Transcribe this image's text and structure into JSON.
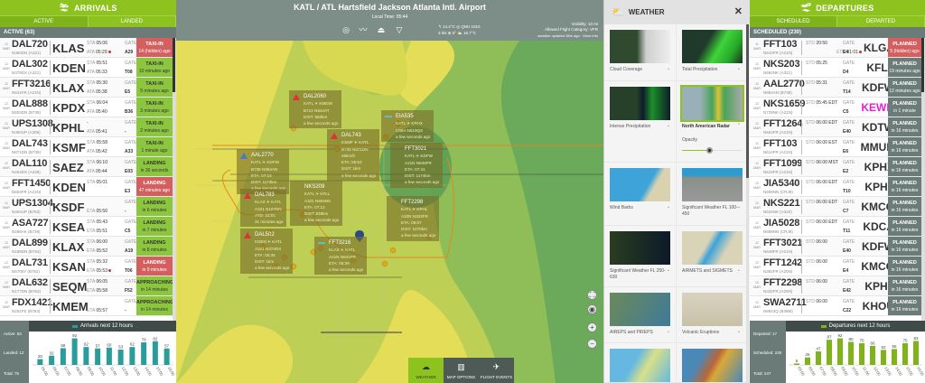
{
  "arrivals": {
    "title": "ARRIVALS",
    "tabs": [
      "ACTIVE",
      "LANDED"
    ],
    "section": "ACTIVE (63)",
    "rows": [
      {
        "date": "12 MAR",
        "callsign": "DAL720",
        "reg": "N360DN (A321)",
        "airport": "KLAS",
        "t1l": "STA",
        "t1": "05:06",
        "t2l": "ATA",
        "t2": "05:29",
        "late": true,
        "gate": "A29",
        "status": "TAXI-IN",
        "sub": "14 (hidden) ago",
        "color": "red"
      },
      {
        "date": "12 MAR",
        "callsign": "DAL302",
        "reg": "N379DX (A321)",
        "airport": "KDEN",
        "t1l": "STA",
        "t1": "05:51",
        "t2l": "ATA",
        "t2": "05:33",
        "gate": "T08",
        "status": "TAXI-IN",
        "sub": "10 minutes ago",
        "color": "green"
      },
      {
        "date": "12 MAR",
        "callsign": "FFT3216",
        "reg": "N641FR (A21N)",
        "airport": "KLAX",
        "t1l": "STA",
        "t1": "05:30",
        "t2l": "ATA",
        "t2": "05:38",
        "gate": "E5",
        "status": "TAXI-IN",
        "sub": "5 minutes ago",
        "color": "green"
      },
      {
        "date": "12 MAR",
        "callsign": "DAL888",
        "reg": "N803DN (B739)",
        "airport": "KPDX",
        "t1l": "STA",
        "t1": "06:04",
        "t2l": "ATA",
        "t2": "05:40",
        "gate": "B36",
        "status": "TAXI-IN",
        "sub": "3 minutes ago",
        "color": "green"
      },
      {
        "date": "12 MAR",
        "callsign": "UPS1308",
        "reg": "N350UP (A306)",
        "airport": "KPHL",
        "t1l": "",
        "t1": "-",
        "t2l": "ATA",
        "t2": "05:41",
        "gate": "-",
        "status": "TAXI-IN",
        "sub": "2 minutes ago",
        "color": "green"
      },
      {
        "date": "12 MAR",
        "callsign": "DAL743",
        "reg": "N871DN (B739)",
        "airport": "KSMF",
        "t1l": "STA",
        "t1": "05:58",
        "t2l": "ATA",
        "t2": "05:42",
        "gate": "A33",
        "status": "TAXI-IN",
        "sub": "1 minute ago",
        "color": "green"
      },
      {
        "date": "12 MAR",
        "callsign": "DAL110",
        "reg": "N404DX (A339)",
        "airport": "SAEZ",
        "t1l": "STA",
        "t1": "06:10",
        "t2l": "ATA",
        "t2": "05:44",
        "gate": "E03",
        "status": "LANDING",
        "sub": "in 36 seconds",
        "color": "green"
      },
      {
        "date": "12 MAR",
        "callsign": "FFT1450",
        "reg": "N663FR (A21N)",
        "airport": "KDEN",
        "t1l": "STA",
        "t1": "05:01",
        "t2l": "",
        "t2": "",
        "gate": "E3",
        "status": "LANDING",
        "sub": "47 minutes ago",
        "color": "red"
      },
      {
        "date": "12 MAR",
        "callsign": "UPS1304",
        "reg": "N304UP (B763)",
        "airport": "KSDF",
        "t1l": "",
        "t1": "",
        "t2l": "ETA",
        "t2": "05:50",
        "gate": "-",
        "status": "LANDING",
        "sub": "in 6 minutes",
        "color": "green"
      },
      {
        "date": "12 MAR",
        "callsign": "ASA727",
        "reg": "N298AK (B739)",
        "airport": "KSEA",
        "t1l": "STA",
        "t1": "05:43",
        "t2l": "ETA",
        "t2": "05:51",
        "gate": "C5",
        "status": "LANDING",
        "sub": "in 7 minutes",
        "color": "green"
      },
      {
        "date": "12 MAR",
        "callsign": "DAL899",
        "reg": "N185DN (B763)",
        "airport": "KLAX",
        "t1l": "STA",
        "t1": "06:00",
        "t2l": "ETA",
        "t2": "05:52",
        "gate": "A19",
        "status": "LANDING",
        "sub": "in 8 minutes",
        "color": "green"
      },
      {
        "date": "12 MAR",
        "callsign": "DAL731",
        "reg": "N6705Y (B752)",
        "airport": "KSAN",
        "t1l": "STA",
        "t1": "05:32",
        "t2l": "ETA",
        "t2": "05:53",
        "late": true,
        "gate": "T06",
        "status": "LANDING",
        "sub": "in 9 minutes",
        "color": "red"
      },
      {
        "date": "12 MAR",
        "callsign": "DAL632",
        "reg": "N177DN (B763)",
        "airport": "SEQM",
        "t1l": "STA",
        "t1": "06:05",
        "t2l": "ETA",
        "t2": "05:58",
        "gate": "F52",
        "status": "APPROACHING",
        "sub": "in 14 minutes",
        "color": "green"
      },
      {
        "date": "12 MAR",
        "callsign": "FDX1421",
        "reg": "N251FE (B763)",
        "airport": "KMEM",
        "t1l": "",
        "t1": "",
        "t2l": "ETA",
        "t2": "05:57",
        "gate": "-",
        "status": "APPROACHING",
        "sub": "in 14 minutes",
        "color": "green"
      }
    ],
    "chart": {
      "legend": "Arrivals next 12 hours",
      "stats": [
        "Active: 63",
        "Landed: 12",
        "Total: 75"
      ]
    }
  },
  "departures": {
    "title": "DEPARTURES",
    "tabs": [
      "SCHEDULED",
      "DEPARTED"
    ],
    "section": "SCHEDULED (230)",
    "rows": [
      {
        "date": "11 MAR",
        "callsign": "FFT103",
        "reg": "N610FR (A21N)",
        "airport": "KLGA",
        "t1l": "STD",
        "t1": "20:50",
        "t2l": "ETD",
        "t2": "01:01",
        "late": true,
        "gate": "E4",
        "status": "PLANNED",
        "sub": "5 (hidden) ago",
        "color": "red"
      },
      {
        "date": "12 MAR",
        "callsign": "NKS203",
        "reg": "N684NK (A321)",
        "airport": "KFLL",
        "t1l": "STD",
        "t1": "05:25",
        "t2l": "",
        "t2": "",
        "gate": "D4",
        "status": "PLANNED",
        "sub": "19 minutes ago",
        "color": "gray"
      },
      {
        "date": "12 MAR",
        "callsign": "AAL2770",
        "reg": "N954AN (B738)",
        "airport": "KDFW",
        "t1l": "STD",
        "t1": "05:31",
        "t2l": "",
        "t2": "",
        "gate": "T14",
        "status": "PLANNED",
        "sub": "12 minutes ago",
        "color": "gray"
      },
      {
        "date": "12 MAR",
        "callsign": "NKS1659",
        "reg": "N729NK (A21N)",
        "airport": "KEWR",
        "highlight": true,
        "t1l": "STD",
        "t1": "05:45 EDT",
        "t2l": "",
        "t2": "",
        "gate": "C5",
        "status": "PLANNED",
        "sub": "in 1 minute",
        "color": "gray"
      },
      {
        "date": "12 MAR",
        "callsign": "FFT1264",
        "reg": "N664FR (A21N)",
        "airport": "KDTW",
        "t1l": "STD",
        "t1": "06:00 EDT",
        "t2l": "",
        "t2": "",
        "gate": "E40",
        "status": "PLANNED",
        "sub": "in 16 minutes",
        "color": "gray"
      },
      {
        "date": "12 MAR",
        "callsign": "FFT103",
        "reg": "N614FR (A21N)",
        "airport": "MMUN",
        "t1l": "STD",
        "t1": "06:00 EST",
        "t2l": "",
        "t2": "",
        "gate": "E6",
        "status": "PLANNED",
        "sub": "in 16 minutes",
        "color": "gray"
      },
      {
        "date": "12 MAR",
        "callsign": "FFT1099",
        "reg": "N615FR (A21N)",
        "airport": "KPHX",
        "t1l": "STD",
        "t1": "06:00 MST",
        "t2l": "",
        "t2": "",
        "gate": "E2",
        "status": "PLANNED",
        "sub": "in 16 minutes",
        "color": "gray"
      },
      {
        "date": "12 MAR",
        "callsign": "JIA5340",
        "reg": "N609NN (CRJ9)",
        "airport": "KPHL",
        "t1l": "STD",
        "t1": "06:00 EDT",
        "t2l": "",
        "t2": "",
        "gate": "T10",
        "status": "PLANNED",
        "sub": "in 16 minutes",
        "color": "gray"
      },
      {
        "date": "12 MAR",
        "callsign": "NKS221",
        "reg": "N634NK (A320)",
        "airport": "KMCO",
        "t1l": "STD",
        "t1": "06:00 EDT",
        "t2l": "",
        "t2": "",
        "gate": "C7",
        "status": "PLANNED",
        "sub": "in 16 minutes",
        "color": "gray"
      },
      {
        "date": "12 MAR",
        "callsign": "JIA5028",
        "reg": "N569NN (CRJ9)",
        "airport": "KDCA",
        "t1l": "STD",
        "t1": "06:00 EDT",
        "t2l": "",
        "t2": "",
        "gate": "T11",
        "status": "PLANNED",
        "sub": "in 16 minutes",
        "color": "gray"
      },
      {
        "date": "12 MAR",
        "callsign": "FFT3021",
        "reg": "N649FR (A21N)",
        "airport": "KDFW",
        "t1l": "STD",
        "t1": "06:00",
        "t2l": "",
        "t2": "",
        "gate": "E40",
        "status": "PLANNED",
        "sub": "in 16 minutes",
        "color": "gray"
      },
      {
        "date": "12 MAR",
        "callsign": "FFT1242",
        "reg": "N392FR (A20N)",
        "airport": "KMCO",
        "t1l": "STD",
        "t1": "06:00",
        "t2l": "",
        "t2": "",
        "gate": "E4",
        "status": "PLANNED",
        "sub": "in 16 minutes",
        "color": "gray"
      },
      {
        "date": "12 MAR",
        "callsign": "FFT2298",
        "reg": "N332FR (A20N)",
        "airport": "KPHL",
        "t1l": "STD",
        "t1": "06:00",
        "t2l": "",
        "t2": "",
        "gate": "E42",
        "status": "PLANNED",
        "sub": "in 16 minutes",
        "color": "gray"
      },
      {
        "date": "12 MAR",
        "callsign": "SWA2711",
        "reg": "N8943Q (B38M)",
        "airport": "KHOU",
        "t1l": "STD",
        "t1": "06:00",
        "t2l": "",
        "t2": "",
        "gate": "C22",
        "status": "PLANNED",
        "sub": "in 16 minutes",
        "color": "gray"
      }
    ],
    "chart": {
      "legend": "Departures next 12 hours",
      "stats": [
        "Departed: 17",
        "Scheduled: 230",
        "Total: 247"
      ]
    }
  },
  "header": {
    "title": "KATL / ATL Hartsfield Jackson Atlanta Intl. Airport",
    "local_time": "Local Time:  05:44",
    "wx_line1": "↰ 14.4°C   ◎ QNH 1010",
    "wx_line2": "3 kts  ⊕ 0°   ⛅ 16.7°C",
    "visibility": "Visibility: 10 mi",
    "category": "Allowed Flight Category: VFR",
    "updated": "weather updated 28m ago · More info"
  },
  "toolbar_icons": [
    "target-icon",
    "trend-icon",
    "landing-icon",
    "filter-icon"
  ],
  "map": {
    "tabs": [
      "WEATHER",
      "MAP OPTIONS",
      "FLIGHT EVENTS"
    ],
    "callouts": [
      {
        "callsign": "DAL2060",
        "lines": [
          "KATL ✈ KMDW",
          "B712    N944AT",
          "DIST: 950km",
          "a few seconds ago"
        ],
        "logo": "delta"
      },
      {
        "callsign": "AAL2770",
        "lines": [
          "KATL ✈ KDFW",
          "B738    N954AN",
          "ETA: 07:15",
          "DIST: 1173km",
          "a few seconds ago"
        ],
        "logo": "american"
      },
      {
        "callsign": "DAL743",
        "lines": [
          "KSMF ✈ KATL",
          "B739    N871DN",
          "26km/h",
          "ETA: 05:54",
          "DIST: 1km",
          "a few seconds ago"
        ],
        "logo": "delta"
      },
      {
        "callsign": "EIA535",
        "lines": [
          "KATL ✈ KPHX",
          "C68A    N519QS",
          "a few seconds ago"
        ],
        "logo": "dash"
      },
      {
        "callsign": "FFT3021",
        "lines": [
          "KATL ✈ KDFW",
          "A21N    N649FR",
          "ETA: 07:41",
          "DIST: 1174km",
          "a few seconds ago"
        ],
        "logo": "none"
      },
      {
        "callsign": "NKS209",
        "lines": [
          "KATL ✈ KFLL",
          "A321    N684NK",
          "ETA: 07:12",
          "DIST: 936km",
          "a few seconds ago"
        ],
        "logo": "none"
      },
      {
        "callsign": "DAL783",
        "lines": [
          "KLAX ✈ KATL",
          "A321    N107DN",
          "ATD: 22:01",
          "31 minutes ago"
        ],
        "logo": "delta"
      },
      {
        "callsign": "FFT2298",
        "lines": [
          "KATL ✈ KPHL",
          "A20N    N332FR",
          "ETA: 08:07",
          "DIST: 1070km",
          "a few seconds ago"
        ],
        "logo": "none"
      },
      {
        "callsign": "DAL502",
        "lines": [
          "KDEN ✈ KATL",
          "A321    N374DX",
          "ETA: 05:35",
          "DIST: 1km",
          "a few seconds ago"
        ],
        "logo": "delta"
      },
      {
        "callsign": "FFT3216",
        "lines": [
          "KLAX ✈ KATL",
          "A21N    N641FR",
          "ETA: 05:39",
          "a few seconds ago"
        ],
        "logo": "dash"
      }
    ]
  },
  "weather": {
    "title": "WEATHER",
    "opacity_label": "Opacity",
    "opacity": 0.45,
    "layers": [
      {
        "label": "Cloud Coverage",
        "thumb": "cloud"
      },
      {
        "label": "Total Precipitation",
        "thumb": "precip"
      },
      {
        "label": "Intense Precipitation",
        "thumb": "intense"
      },
      {
        "label": "North American Radar",
        "thumb": "radar",
        "selected": true
      },
      {
        "label": "Wind Barbs",
        "thumb": "wind"
      },
      {
        "label": "Significant Weather FL 100-450",
        "thumb": "sigwx"
      },
      {
        "label": "Significant Weather FL 250-630",
        "thumb": "sigwx2"
      },
      {
        "label": "AIRMETS and SIGMETS",
        "thumb": "airmet"
      },
      {
        "label": "AIREPS and PIREPS",
        "thumb": "aireps"
      },
      {
        "label": "Volcanic Eruptions",
        "thumb": "volcanic"
      },
      {
        "label": "",
        "thumb": "sat"
      },
      {
        "label": "",
        "thumb": "temp"
      }
    ]
  },
  "chart_data": [
    {
      "type": "bar",
      "title": "Arrivals next 12 hours",
      "categories": [
        "05:00",
        "06:00",
        "07:00",
        "08:00",
        "09:00",
        "10:00",
        "11:00",
        "12:00",
        "13:00",
        "14:00",
        "15:00",
        "16:00"
      ],
      "values": [
        20,
        32,
        58,
        92,
        62,
        57,
        60,
        53,
        62,
        78,
        82,
        57
      ],
      "color": "#2a9d9a"
    },
    {
      "type": "bar",
      "title": "Departures next 12 hours",
      "categories": [
        "05:00",
        "06:00",
        "07:00",
        "08:00",
        "09:00",
        "10:00",
        "11:00",
        "12:00",
        "13:00",
        "14:00",
        "15:00",
        "16:00"
      ],
      "values": [
        5,
        26,
        47,
        87,
        92,
        80,
        75,
        66,
        52,
        55,
        75,
        83
      ],
      "color": "#7fb31a"
    }
  ],
  "colors": {
    "brand": "#8dc21f",
    "late": "#d35f5f",
    "on_time": "#8cc63f",
    "planned": "#6b7c78",
    "highlight": "#e51fd6"
  }
}
